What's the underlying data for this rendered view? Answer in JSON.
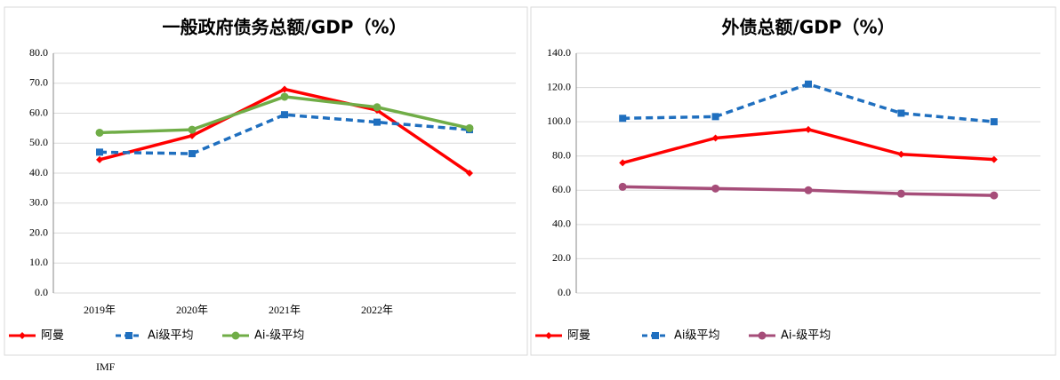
{
  "chart_data": [
    {
      "type": "line",
      "title": "一般政府债务总额/GDP（%）",
      "categories": [
        "2019年",
        "2020年",
        "2021年",
        "2022年",
        null
      ],
      "ylim": [
        0,
        80
      ],
      "yticks": [
        {
          "value": 0,
          "label": "0.0"
        },
        {
          "value": 10,
          "label": "10.0"
        },
        {
          "value": 20,
          "label": "20.0"
        },
        {
          "value": 30,
          "label": "30.0"
        },
        {
          "value": 40,
          "label": "40.0"
        },
        {
          "value": 50,
          "label": "50.0"
        },
        {
          "value": 60,
          "label": "60.0"
        },
        {
          "value": 70,
          "label": "70.0"
        },
        {
          "value": 80,
          "label": "80.0"
        }
      ],
      "grid": true,
      "series": [
        {
          "name": "阿曼",
          "color": "#ff0000",
          "dash": false,
          "marker": "diamond",
          "values": [
            44.5,
            52.5,
            68,
            61,
            40
          ]
        },
        {
          "name": "Ai级平均",
          "color": "#1f6fbf",
          "dash": true,
          "marker": "square",
          "values": [
            47,
            46.5,
            59.5,
            57,
            54.5
          ]
        },
        {
          "name": "Ai-级平均",
          "color": "#70ad47",
          "dash": false,
          "marker": "circle",
          "values": [
            53.5,
            54.5,
            65.5,
            62,
            55
          ]
        }
      ]
    },
    {
      "type": "line",
      "title": "外债总额/GDP（%）",
      "categories": [
        null,
        null,
        null,
        null,
        null
      ],
      "ylim": [
        0,
        140
      ],
      "yticks": [
        {
          "value": 0,
          "label": "0.0"
        },
        {
          "value": 20,
          "label": "20.0"
        },
        {
          "value": 40,
          "label": "40.0"
        },
        {
          "value": 60,
          "label": "60.0"
        },
        {
          "value": 80,
          "label": "80.0"
        },
        {
          "value": 100,
          "label": "100.0"
        },
        {
          "value": 120,
          "label": "120.0"
        },
        {
          "value": 140,
          "label": "140.0"
        }
      ],
      "grid": true,
      "series": [
        {
          "name": "阿曼",
          "color": "#ff0000",
          "dash": false,
          "marker": "diamond",
          "values": [
            76,
            90.5,
            95.5,
            81,
            78
          ]
        },
        {
          "name": "Ai级平均",
          "color": "#1f6fbf",
          "dash": true,
          "marker": "square",
          "values": [
            102,
            103,
            122,
            105,
            100
          ]
        },
        {
          "name": "Ai-级平均",
          "color": "#a64d79",
          "dash": false,
          "marker": "circle",
          "values": [
            62,
            61,
            60,
            58,
            57
          ]
        }
      ]
    }
  ],
  "source": "IMF"
}
